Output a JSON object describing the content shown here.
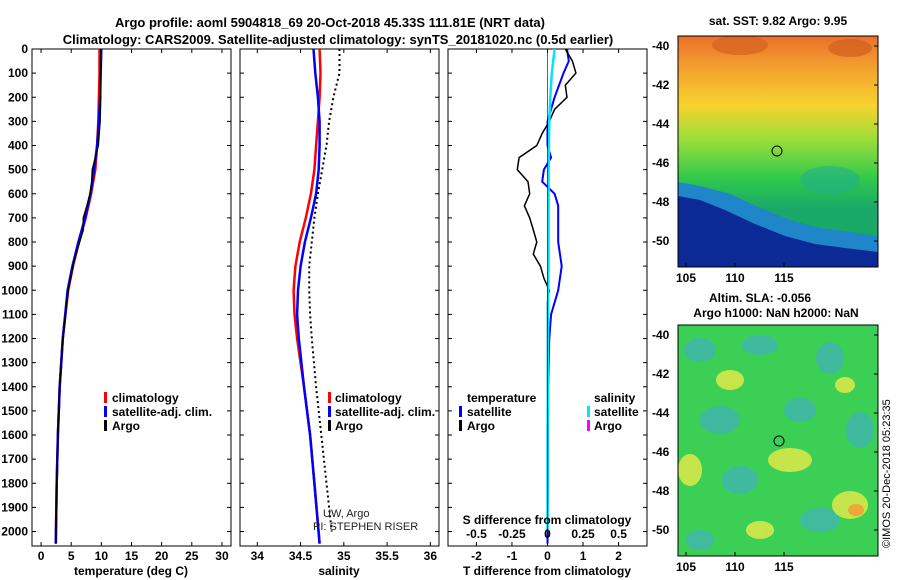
{
  "header": {
    "title_line1": "Argo profile: aoml 5904818_69 20-Oct-2018 45.33S 111.81E (NRT data)",
    "title_line2": "Climatology: CARS2009. Satellite-adjusted climatology: synTS_20181020.nc (0.5d earlier)"
  },
  "colors": {
    "climatology": "#ff0000",
    "satellite": "#0000ff",
    "argo": "#000000",
    "salinity_satellite": "#00e5ff",
    "salinity_argo": "#ff00ff"
  },
  "legend": {
    "climatology": "climatology",
    "satellite_adj": "satellite-adj. clim.",
    "argo": "Argo",
    "temperature": "temperature",
    "salinity": "salinity",
    "satellite": "satellite"
  },
  "credits": {
    "line1": "UW, Argo",
    "line2": "PI: STEPHEN RISER"
  },
  "stamp": "©IMOS 20-Dec-2018 05:23:35",
  "maps": {
    "sst_title": "sat. SST: 9.82 Argo: 9.95",
    "sla_title1": "Altim. SLA: -0.056",
    "sla_title2": "Argo h1000: NaN h2000: NaN",
    "lat_ticks": [
      "-40",
      "-42",
      "-44",
      "-46",
      "-48",
      "-50"
    ],
    "lon_ticks": [
      "105",
      "110",
      "115"
    ]
  },
  "chart_data": [
    {
      "type": "line",
      "name": "temperature profile",
      "xlabel": "temperature (deg C)",
      "xlim": [
        -1.5,
        31.5
      ],
      "xticks": [
        0,
        5,
        10,
        15,
        20,
        25,
        30
      ],
      "ylim": [
        2060,
        0
      ],
      "yticks": [
        0,
        100,
        200,
        300,
        400,
        500,
        600,
        700,
        800,
        900,
        1000,
        1100,
        1200,
        1300,
        1400,
        1500,
        1600,
        1700,
        1800,
        1900,
        2000
      ],
      "series": [
        {
          "name": "climatology",
          "pressure": [
            0,
            100,
            200,
            300,
            400,
            500,
            600,
            700,
            800,
            900,
            1000,
            1200,
            1400,
            1600,
            1800,
            2050
          ],
          "values": [
            9.7,
            9.7,
            9.6,
            9.5,
            9.3,
            9.0,
            8.3,
            7.4,
            6.3,
            5.3,
            4.5,
            3.6,
            3.1,
            2.8,
            2.6,
            2.45
          ]
        },
        {
          "name": "satellite-adj. clim.",
          "pressure": [
            0,
            100,
            200,
            300,
            400,
            500,
            600,
            700,
            800,
            900,
            1000,
            1200,
            1400,
            1600,
            1800,
            2050
          ],
          "values": [
            10.0,
            9.9,
            9.8,
            9.6,
            9.3,
            8.8,
            8.2,
            7.3,
            6.2,
            5.2,
            4.4,
            3.6,
            3.1,
            2.8,
            2.6,
            2.45
          ]
        },
        {
          "name": "Argo",
          "pressure": [
            0,
            100,
            200,
            300,
            400,
            450,
            500,
            550,
            600,
            650,
            700,
            750,
            800,
            850,
            900,
            950,
            1000,
            1200,
            1400,
            1600,
            1800,
            2050
          ],
          "values": [
            9.9,
            9.9,
            9.9,
            9.8,
            9.5,
            9.0,
            8.5,
            8.4,
            8.1,
            7.6,
            7.0,
            7.0,
            6.4,
            5.8,
            5.3,
            4.9,
            4.5,
            3.6,
            3.1,
            2.8,
            2.6,
            2.45
          ]
        }
      ]
    },
    {
      "type": "line",
      "name": "salinity profile",
      "xlabel": "salinity",
      "xlim": [
        33.8,
        36.1
      ],
      "xticks": [
        34,
        34.5,
        35,
        35.5,
        36
      ],
      "ylim": [
        2060,
        0
      ],
      "series": [
        {
          "name": "climatology",
          "pressure": [
            0,
            100,
            200,
            300,
            400,
            500,
            600,
            700,
            800,
            900,
            1000,
            1100,
            1200,
            1400,
            1600,
            1800,
            2050
          ],
          "values": [
            34.72,
            34.73,
            34.72,
            34.7,
            34.68,
            34.66,
            34.62,
            34.56,
            34.49,
            34.44,
            34.42,
            34.43,
            34.46,
            34.54,
            34.61,
            34.66,
            34.72
          ]
        },
        {
          "name": "satellite-adj. clim.",
          "pressure": [
            0,
            100,
            200,
            300,
            400,
            500,
            600,
            700,
            800,
            900,
            1000,
            1100,
            1200,
            1400,
            1600,
            1800,
            2050
          ],
          "values": [
            34.65,
            34.67,
            34.7,
            34.72,
            34.72,
            34.71,
            34.68,
            34.62,
            34.55,
            34.5,
            34.47,
            34.46,
            34.48,
            34.54,
            34.61,
            34.66,
            34.72
          ]
        },
        {
          "name": "Argo",
          "pressure": [
            0,
            100,
            200,
            300,
            400,
            500,
            600,
            700,
            800,
            900,
            1000,
            1100,
            1200,
            1400,
            1600,
            1800,
            2000
          ],
          "values": [
            34.95,
            34.95,
            34.88,
            34.83,
            34.8,
            34.75,
            34.7,
            34.66,
            34.63,
            34.6,
            34.6,
            34.61,
            34.63,
            34.68,
            34.74,
            34.8,
            34.86
          ]
        }
      ]
    },
    {
      "type": "line",
      "name": "difference from climatology",
      "xlabel": "T difference from climatology",
      "xlabel_top": "S difference from climatology",
      "xlim": [
        -2.8,
        2.8
      ],
      "xticks": [
        -2,
        -1,
        0,
        1,
        2
      ],
      "s_ticks": [
        -0.5,
        -0.25,
        0,
        0.25,
        0.5
      ],
      "s_tick_labels": [
        "-0.5",
        "-0.25",
        "0",
        "0.25",
        "0.5"
      ],
      "ylim": [
        2060,
        0
      ],
      "series": [
        {
          "name": "temperature satellite",
          "pressure": [
            0,
            50,
            100,
            200,
            300,
            400,
            450,
            500,
            550,
            600,
            650,
            700,
            800,
            900,
            1000,
            1100,
            1200,
            1400,
            1600,
            1800,
            2050
          ],
          "values": [
            0.55,
            0.6,
            0.45,
            0.2,
            0.0,
            0.0,
            0.1,
            -0.1,
            -0.15,
            0.2,
            0.3,
            0.3,
            0.3,
            0.4,
            0.3,
            0.1,
            0.05,
            0.02,
            0.01,
            0.01,
            0.0
          ]
        },
        {
          "name": "temperature Argo",
          "pressure": [
            0,
            50,
            100,
            150,
            200,
            250,
            300,
            350,
            400,
            450,
            500,
            550,
            600,
            650,
            700,
            750,
            800,
            850,
            900,
            950,
            1000,
            1050,
            1100,
            1200,
            1400,
            1600,
            1800,
            2000
          ],
          "values": [
            0.5,
            0.7,
            0.8,
            0.5,
            0.55,
            0.2,
            0.05,
            -0.15,
            -0.3,
            -0.8,
            -0.85,
            -0.55,
            -0.5,
            -0.65,
            -0.5,
            -0.4,
            -0.3,
            -0.4,
            -0.2,
            -0.1,
            0.05,
            0.0,
            0.0,
            0.0,
            0.0,
            0.0,
            0.0,
            0.0
          ]
        },
        {
          "name": "salinity satellite",
          "pressure": [
            0,
            100,
            200,
            300,
            400,
            500,
            600,
            700,
            800,
            900,
            1000,
            1200,
            1400,
            1600,
            1800,
            2000
          ],
          "values": [
            0.2,
            0.12,
            0.08,
            0.05,
            0.04,
            0.03,
            0.03,
            0.03,
            0.03,
            0.03,
            0.02,
            0.01,
            0.01,
            0.0,
            0.0,
            0.0
          ]
        }
      ]
    }
  ]
}
